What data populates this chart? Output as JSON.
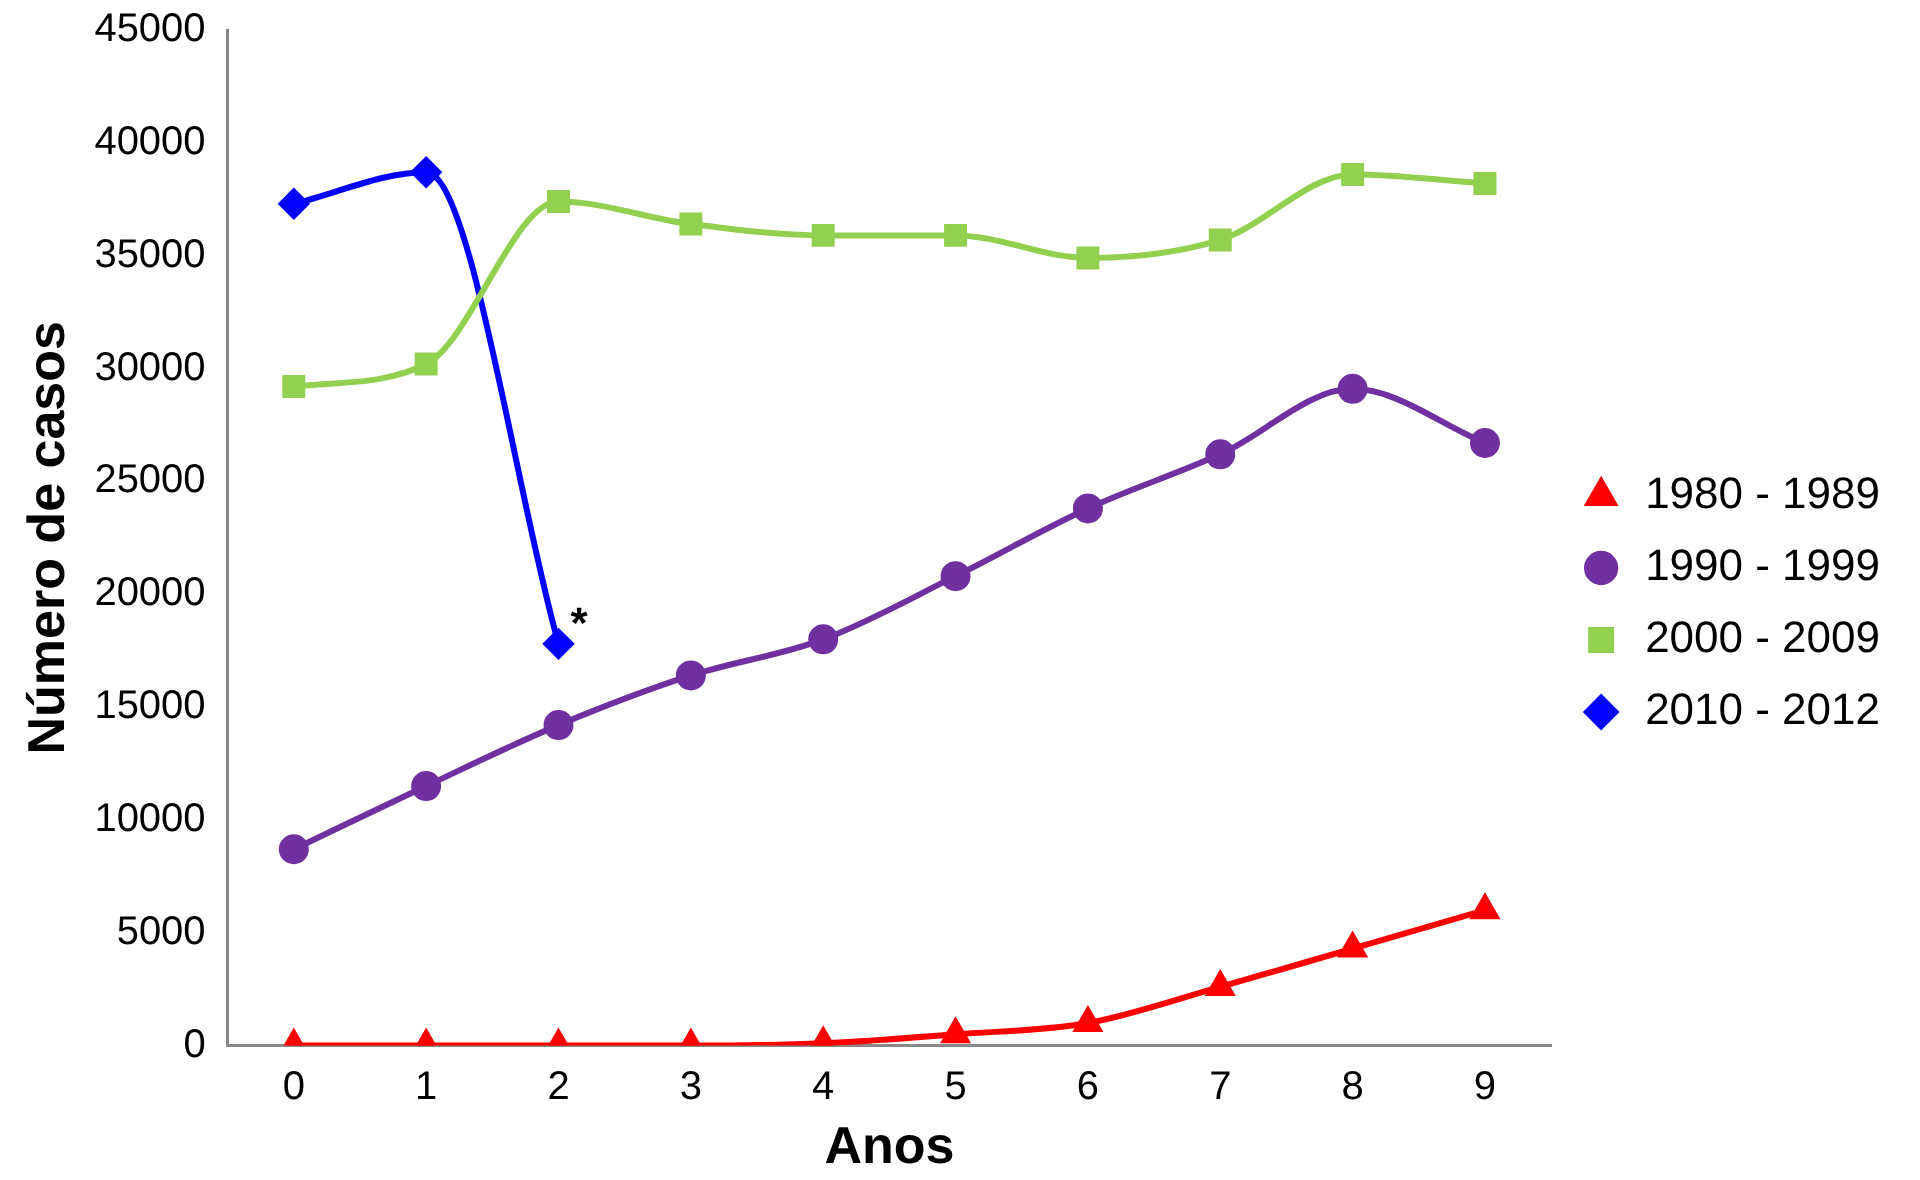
{
  "chart_data": {
    "type": "line",
    "xlabel": "Anos",
    "ylabel": "Número de casos",
    "categories": [
      "0",
      "1",
      "2",
      "3",
      "4",
      "5",
      "6",
      "7",
      "8",
      "9"
    ],
    "series": [
      {
        "name": "1980 - 1989",
        "color": "#ff0000",
        "marker": "triangle",
        "values": [
          0,
          0,
          0,
          0,
          100,
          500,
          1000,
          2600,
          4300,
          6000
        ]
      },
      {
        "name": "1990 - 1999",
        "color": "#7030a0",
        "marker": "circle",
        "values": [
          8700,
          11500,
          14200,
          16400,
          18000,
          20800,
          23800,
          26200,
          29100,
          26700
        ]
      },
      {
        "name": "2000 - 2009",
        "color": "#92d050",
        "marker": "square",
        "values": [
          29200,
          30200,
          37400,
          36400,
          35900,
          35900,
          34900,
          35700,
          38600,
          38200
        ]
      },
      {
        "name": "2010 - 2012",
        "color": "#0000ff",
        "marker": "diamond",
        "values": [
          37300,
          38700,
          17800,
          null,
          null,
          null,
          null,
          null,
          null,
          null
        ]
      }
    ],
    "ylim": [
      0,
      45000
    ],
    "yticks": [
      0,
      5000,
      10000,
      15000,
      20000,
      25000,
      30000,
      35000,
      40000,
      45000
    ],
    "grid": false,
    "legend": "right",
    "annotations": [
      {
        "text": "*",
        "x": "2",
        "y": 17800
      }
    ]
  }
}
